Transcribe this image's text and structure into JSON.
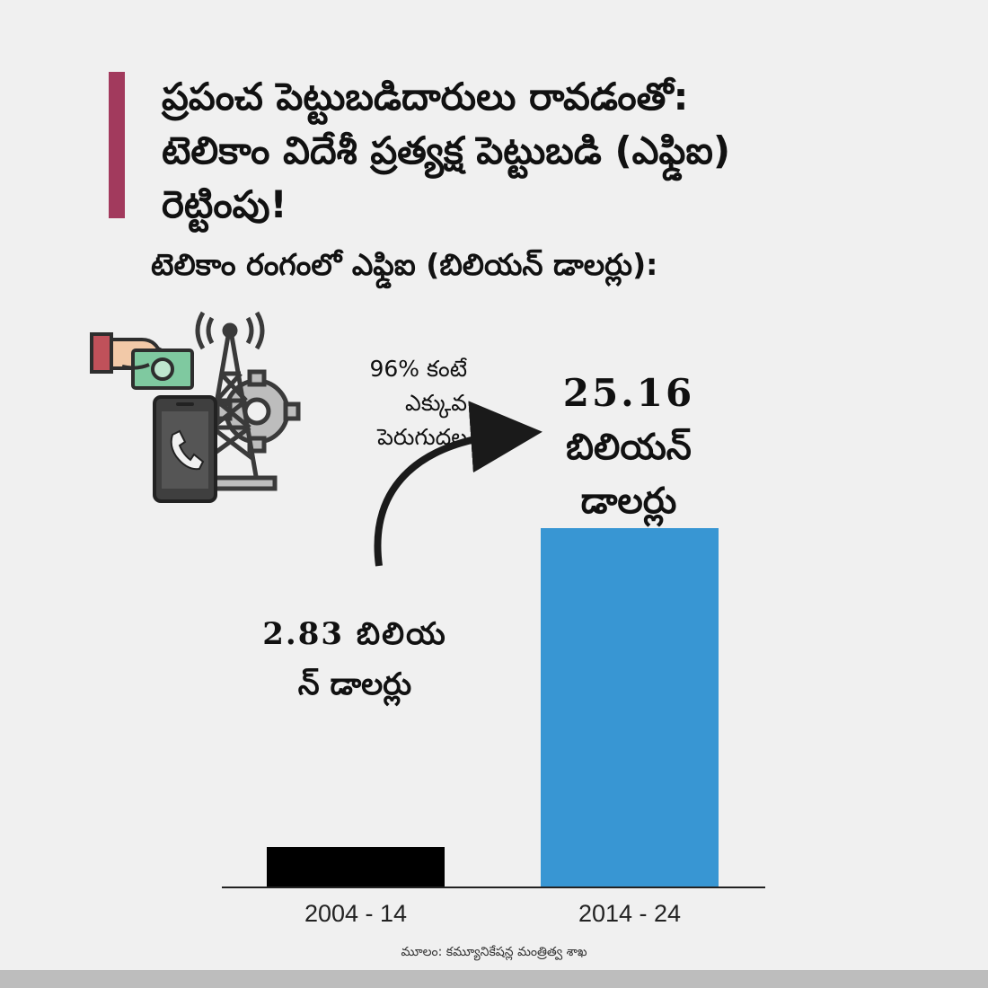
{
  "header": {
    "title_lines": [
      "ప్రపంచ పెట్టుబడిదారులు రావడంతో:",
      "టెలికాం విదేశీ ప్రత్యక్ష పెట్టుబడి (ఎఫ్డిఐ)",
      "రెట్టింపు!"
    ],
    "subtitle": "టెలికాం రంగంలో ఎఫ్డిఐ (బిలియన్ డాలర్లు):"
  },
  "annotation": {
    "lines": [
      "96% కంటే",
      "ఎక్కువ",
      "పెరుగుదల"
    ]
  },
  "chart_data": {
    "type": "bar",
    "categories": [
      "2004 - 14",
      "2014 - 24"
    ],
    "values": [
      2.83,
      25.16
    ],
    "colors": [
      "#000000",
      "#3896d3"
    ],
    "value_labels": [
      [
        "2.83 బిలియ",
        "న్ డాలర్లు"
      ],
      [
        "25.16",
        "బిలియన్",
        "డాలర్లు"
      ]
    ],
    "annotation_arrow": "curved arrow from first bar toward second bar"
  },
  "illustration": {
    "icons": [
      "hand-with-money-icon",
      "telecom-tower-icon",
      "gear-icon",
      "smartphone-icon"
    ],
    "colors": {
      "sleeve": "#c0515a",
      "money": "#7fc9a0",
      "phone": "#3f3f3f",
      "gear": "#bdbdbd"
    }
  },
  "footer": {
    "source": "మూలం: కమ్యూనికేషన్ల మంత్రిత్వ శాఖ"
  },
  "colors": {
    "background": "#f0f0f0",
    "accent": "#a23a5d",
    "bar_old": "#000000",
    "bar_new": "#3896d3",
    "footer_strip": "#bdbdbd"
  }
}
